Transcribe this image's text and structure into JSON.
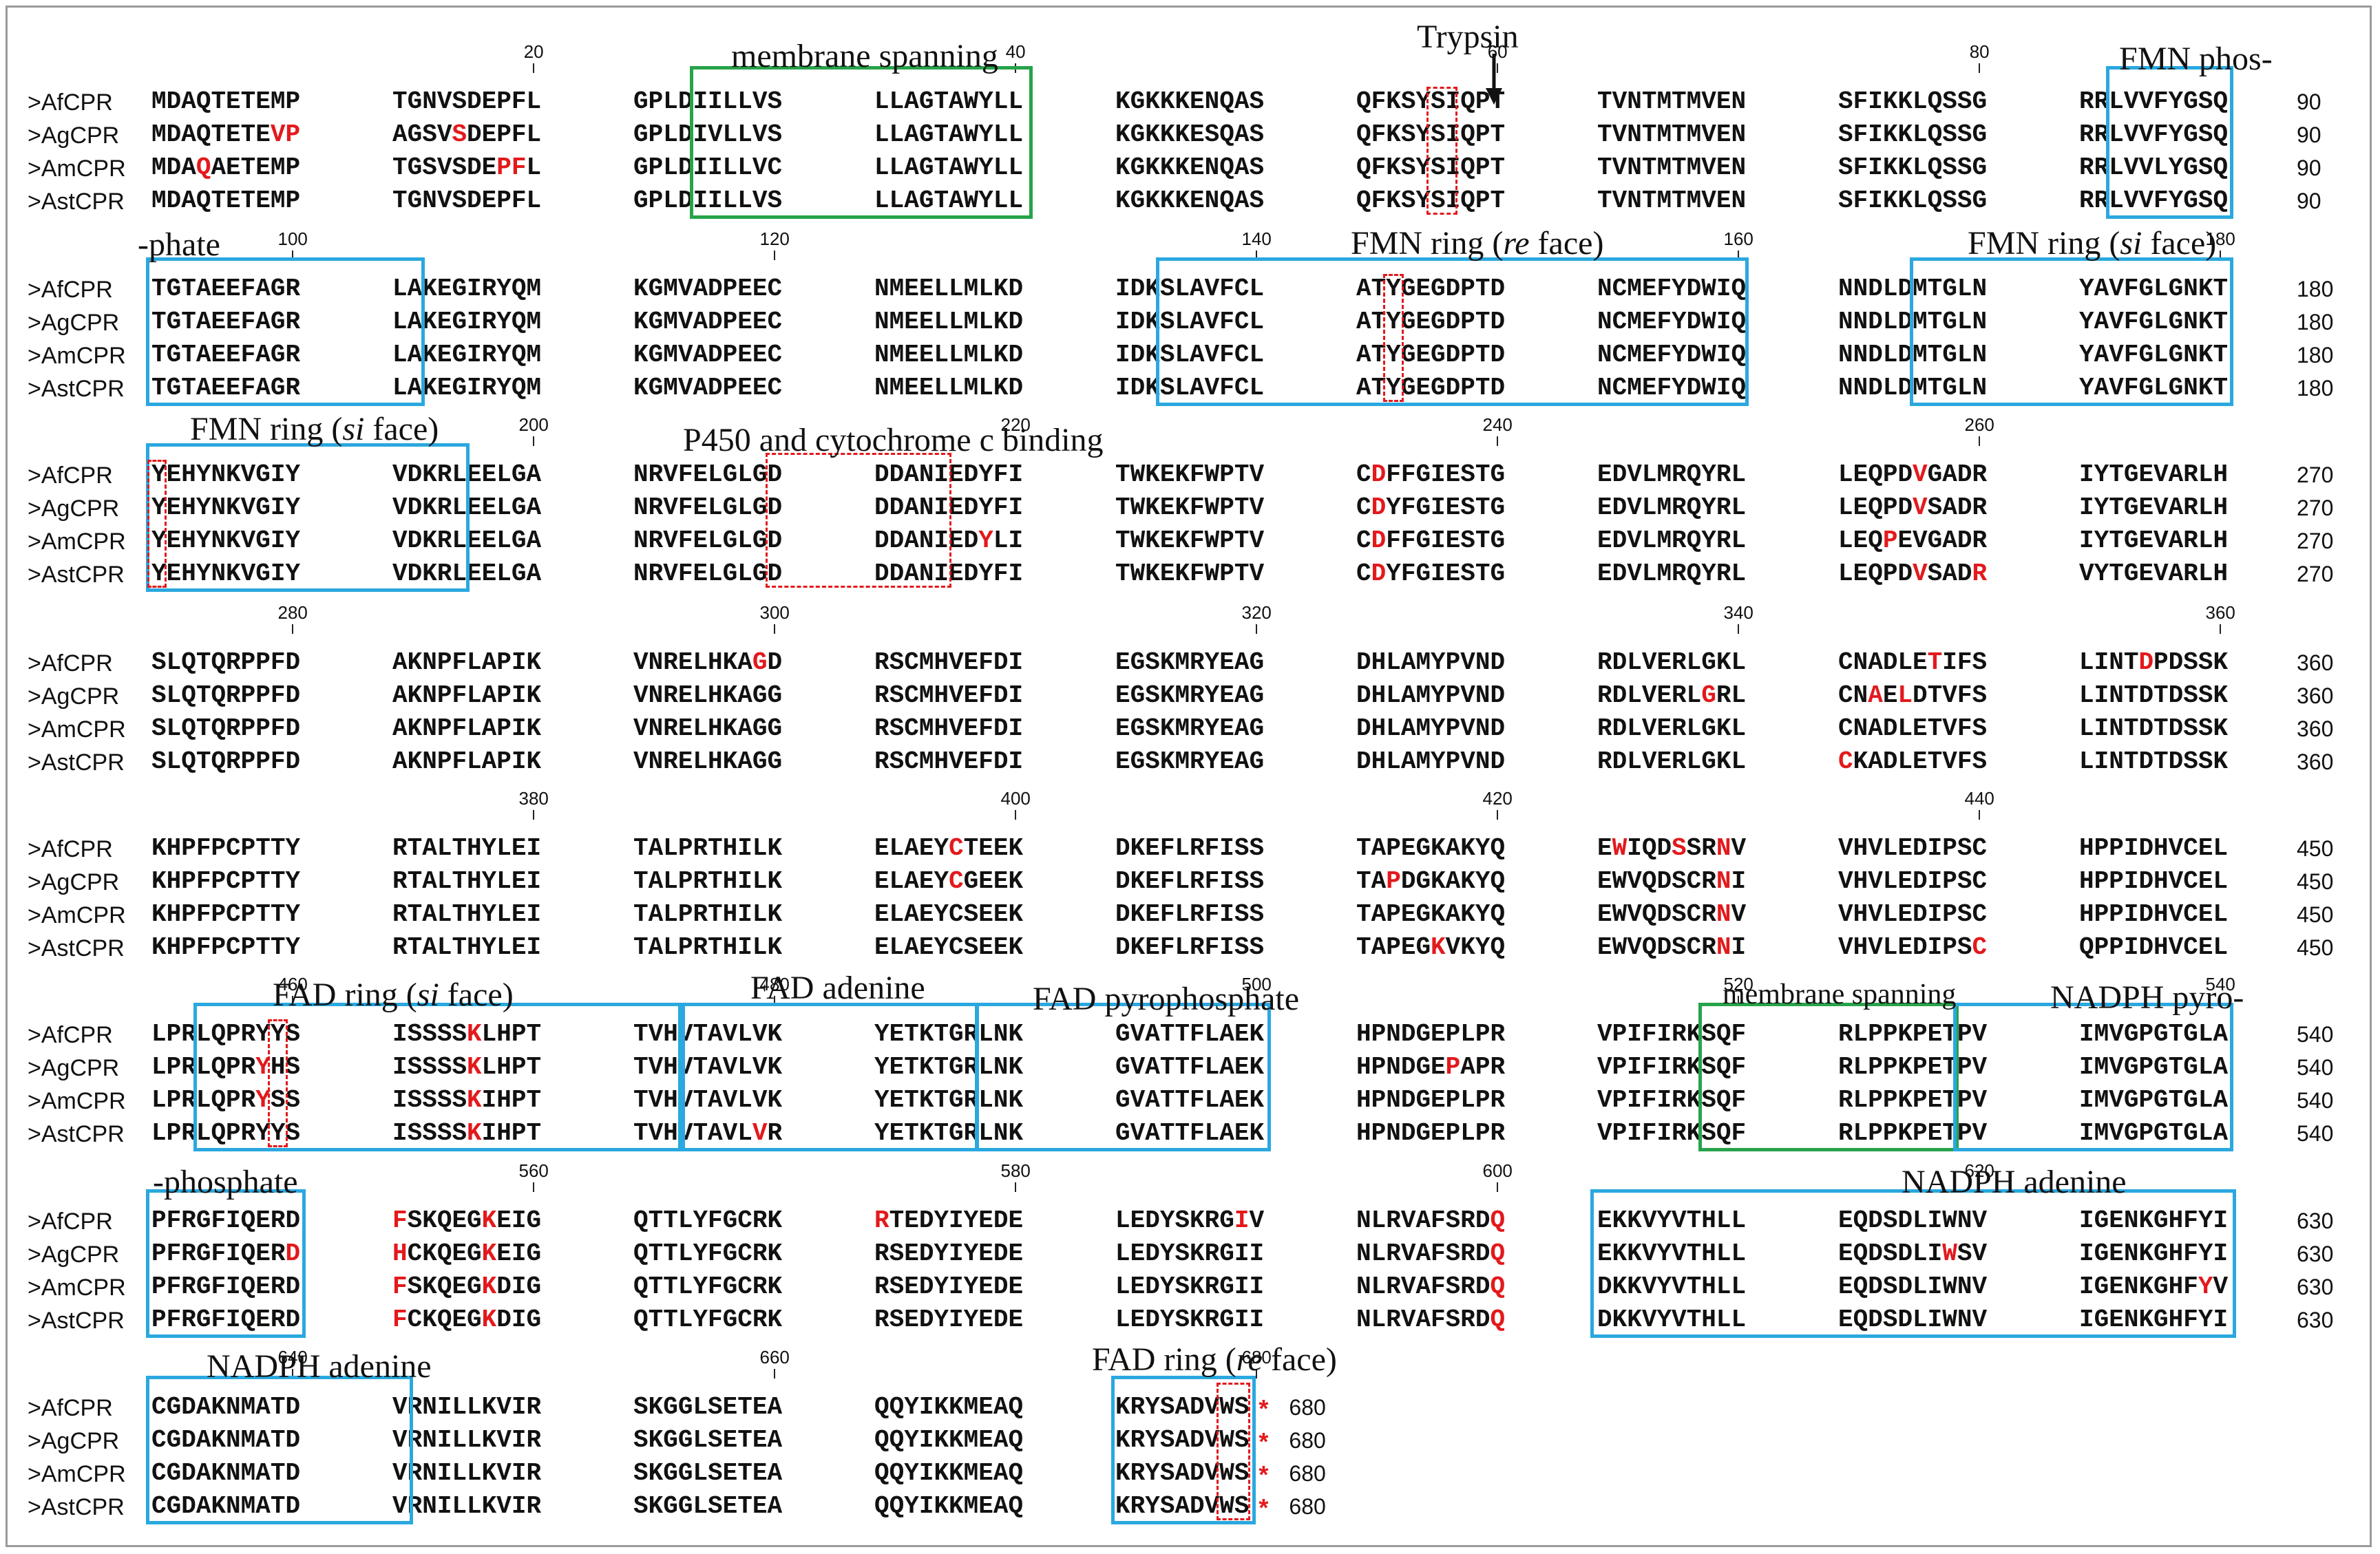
{
  "names": [
    ">AfCPR",
    ">AgCPR",
    ">AmCPR",
    ">AstCPR"
  ],
  "colors": {
    "red": "#e3191c",
    "blue_box": "#2aa8df",
    "green_box": "#27a34a",
    "text": "#111111"
  },
  "blocks": [
    {
      "ticks": [
        {
          "label": "20",
          "col": 20
        },
        {
          "label": "40",
          "col": 40
        },
        {
          "label": "60",
          "col": 60
        },
        {
          "label": "80",
          "col": 80
        }
      ],
      "end": "90",
      "rows": [
        [
          "MDAQTETEMP",
          "TGNVSDEPFL",
          "GPLDIILLVS",
          "LLAGTAWYLL",
          "KGKKKENQAS",
          "QFKSYSIQPT",
          "TVNTMTMVEN",
          "SFIKKLQSSG",
          "RRLVVFYGSQ"
        ],
        [
          "MDAQTETEVP",
          "AGSVSDEPFL",
          "GPLDIVLLVS",
          "LLAGTAWYLL",
          "KGKKKESQAS",
          "QFKSYSIQPT",
          "TVNTMTMVEN",
          "SFIKKLQSSG",
          "RRLVVFYGSQ"
        ],
        [
          "MDAQAETEMP",
          "TGSVSDEPFL",
          "GPLDIILLVC",
          "LLAGTAWYLL",
          "KGKKKENQAS",
          "QFKSYSIQPT",
          "TVNTMTMVEN",
          "SFIKKLQSSG",
          "RRLVVLYGSQ"
        ],
        [
          "MDAQTETEMP",
          "TGNVSDEPFL",
          "GPLDIILLVS",
          "LLAGTAWYLL",
          "KGKKKENQAS",
          "QFKSYSIQPT",
          "TVNTMTMVEN",
          "SFIKKLQSSG",
          "RRLVVFYGSQ"
        ]
      ],
      "red": [
        [],
        [
          9,
          10,
          15
        ],
        [
          4,
          18,
          19
        ],
        []
      ],
      "red_extra": [
        [
          12
        ],
        [],
        [
          25
        ],
        []
      ]
    },
    {
      "ticks": [
        {
          "label": "100",
          "col": 10
        },
        {
          "label": "120",
          "col": 30
        },
        {
          "label": "140",
          "col": 50
        },
        {
          "label": "160",
          "col": 70
        },
        {
          "label": "180",
          "col": 90
        }
      ],
      "end": "180",
      "rows": [
        [
          "TGTAEEFAGR",
          "LAKEGIRYQM",
          "KGMVADPEEC",
          "NMEELLMLKD",
          "IDKSLAVFCL",
          "ATYGEGDPTD",
          "NCMEFYDWIQ",
          "NNDLDMTGLN",
          "YAVFGLGNKT"
        ],
        [
          "TGTAEEFAGR",
          "LAKEGIRYQM",
          "KGMVADPEEC",
          "NMEELLMLKD",
          "IDKSLAVFCL",
          "ATYGEGDPTD",
          "NCMEFYDWIQ",
          "NNDLDMTGLN",
          "YAVFGLGNKT"
        ],
        [
          "TGTAEEFAGR",
          "LAKEGIRYQM",
          "KGMVADPEEC",
          "NMEELLMLKD",
          "IDKSLAVFCL",
          "ATYGEGDPTD",
          "NCMEFYDWIQ",
          "NNDLDMTGLN",
          "YAVFGLGNKT"
        ],
        [
          "TGTAEEFAGR",
          "LAKEGIRYQM",
          "KGMVADPEEC",
          "NMEELLMLKD",
          "IDKSLAVFCL",
          "ATYGEGDPTD",
          "NCMEFYDWIQ",
          "NNDLDMTGLN",
          "YAVFGLGNKT"
        ]
      ],
      "red": [
        [],
        [],
        [],
        []
      ]
    },
    {
      "ticks": [
        {
          "label": "200",
          "col": 20
        },
        {
          "label": "220",
          "col": 40
        },
        {
          "label": "240",
          "col": 60
        },
        {
          "label": "260",
          "col": 80
        }
      ],
      "end": "270",
      "rows": [
        [
          "YEHYNKVGIY",
          "VDKRLEELGA",
          "NRVFELGLGD",
          "DDANIEDYFI",
          "TWKEKFWPTV",
          "CDFFGIESTG",
          "EDVLMRQYRL",
          "LEQPDVGADR",
          "IYTGEVARLH"
        ],
        [
          "YEHYNKVGIY",
          "VDKRLEELGA",
          "NRVFELGLGD",
          "DDANIEDYFI",
          "TWKEKFWPTV",
          "CDYFGIESTG",
          "EDVLMRQYRL",
          "LEQPDVSADR",
          "IYTGEVARLH"
        ],
        [
          "YEHYNKVGIY",
          "VDKRLEELGA",
          "NRVFELGLGD",
          "DDANIEDYLI",
          "TWKEKFWPTV",
          "CDFFGIESTG",
          "EDVLMRQYRL",
          "LEQPEVGADR",
          "IYTGEVARLH"
        ],
        [
          "YEHYNKVGIY",
          "VDKRLEELGA",
          "NRVFELGLGD",
          "DDANIEDYFI",
          "TWKEKFWPTV",
          "CDYFGIESTG",
          "EDVLMRQYRL",
          "LEQPDVSADR",
          "VYTGEVARLH"
        ]
      ],
      "red": [
        [
          52,
          76
        ],
        [
          52,
          76
        ],
        [
          38,
          52,
          74
        ],
        [
          52,
          76,
          80
        ]
      ]
    },
    {
      "ticks": [
        {
          "label": "280",
          "col": 10
        },
        {
          "label": "300",
          "col": 30
        },
        {
          "label": "320",
          "col": 50
        },
        {
          "label": "340",
          "col": 70
        },
        {
          "label": "360",
          "col": 90
        }
      ],
      "end": "360",
      "rows": [
        [
          "SLQTQRPPFD",
          "AKNPFLAPIK",
          "VNRELHKAGD",
          "RSCMHVEFDI",
          "EGSKMRYEAG",
          "DHLAMYPVND",
          "RDLVERLGKL",
          "CNADLETIFS",
          "LINTDPDSSK"
        ],
        [
          "SLQTQRPPFD",
          "AKNPFLAPIK",
          "VNRELHKAGG",
          "RSCMHVEFDI",
          "EGSKMRYEAG",
          "DHLAMYPVND",
          "RDLVERLGRL",
          "CNAELDTVFS",
          "LINTDTDSSK"
        ],
        [
          "SLQTQRPPFD",
          "AKNPFLAPIK",
          "VNRELHKAGG",
          "RSCMHVEFDI",
          "EGSKMRYEAG",
          "DHLAMYPVND",
          "RDLVERLGKL",
          "CNADLETVFS",
          "LINTDTDSSK"
        ],
        [
          "SLQTQRPPFD",
          "AKNPFLAPIK",
          "VNRELHKAGG",
          "RSCMHVEFDI",
          "EGSKMRYEAG",
          "DHLAMYPVND",
          "RDLVERLGKL",
          "CKADLETVFS",
          "LINTDTDSSK"
        ]
      ],
      "red": [
        [
          29,
          77,
          85
        ],
        [
          68,
          73,
          75
        ],
        [],
        [
          71
        ]
      ]
    },
    {
      "ticks": [
        {
          "label": "380",
          "col": 20
        },
        {
          "label": "400",
          "col": 40
        },
        {
          "label": "420",
          "col": 60
        },
        {
          "label": "440",
          "col": 80
        }
      ],
      "end": "450",
      "rows": [
        [
          "KHPFPCPTTY",
          "RTALTHYLEI",
          "TALPRTHILK",
          "ELAEYCTEEK",
          "DKEFLRFISS",
          "TAPEGKAKYQ",
          "EWIQDSSRNV",
          "VHVLEDIPSC",
          "HPPIDHVCEL"
        ],
        [
          "KHPFPCPTTY",
          "RTALTHYLEI",
          "TALPRTHILK",
          "ELAEYCGEEK",
          "DKEFLRFISS",
          "TAPDGKAKYQ",
          "EWVQDSCRNI",
          "VHVLEDIPSC",
          "HPPIDHVCEL"
        ],
        [
          "KHPFPCPTTY",
          "RTALTHYLEI",
          "TALPRTHILK",
          "ELAEYCSEEK",
          "DKEFLRFISS",
          "TAPEGKAKYQ",
          "EWVQDSCRNV",
          "VHVLEDIPSC",
          "HPPIDHVCEL"
        ],
        [
          "KHPFPCPTTY",
          "RTALTHYLEI",
          "TALPRTHILK",
          "ELAEYCSEEK",
          "DKEFLRFISS",
          "TAPEGKVKYQ",
          "EWVQDSCRNI",
          "VHVLEDIPSC",
          "QPPIDHVCEL"
        ]
      ],
      "red": [
        [
          36,
          62,
          66,
          69
        ],
        [
          36,
          53,
          69
        ],
        [
          69
        ],
        [
          56,
          69,
          80
        ]
      ]
    },
    {
      "ticks": [
        {
          "label": "460",
          "col": 10
        },
        {
          "label": "480",
          "col": 30
        },
        {
          "label": "500",
          "col": 50
        },
        {
          "label": "520",
          "col": 70
        },
        {
          "label": "540",
          "col": 90
        }
      ],
      "end": "540",
      "rows": [
        [
          "LPRLQPRYYS",
          "ISSSSKLHPT",
          "TVHVTAVLVK",
          "YETKTGRLNK",
          "GVATTFLAEK",
          "HPNDGEPLPR",
          "VPIFIRKSQF",
          "RLPPKPETPV",
          "IMVGPGTGLA"
        ],
        [
          "LPRLQPRYHS",
          "ISSSSKLHPT",
          "TVHVTAVLVK",
          "YETKTGRLNK",
          "GVATTFLAEK",
          "HPNDGEPAPR",
          "VPIFIRKSQF",
          "RLPPKPETPV",
          "IMVGPGTGLA"
        ],
        [
          "LPRLQPRYSS",
          "ISSSSKIHPT",
          "TVHVTAVLVK",
          "YETKTGRLNK",
          "GVATTFLAEK",
          "HPNDGEPLPR",
          "VPIFIRKSQF",
          "RLPPKPETPV",
          "IMVGPGTGLA"
        ],
        [
          "LPRLQPRYYS",
          "ISSSSKIHPT",
          "TVHVTAVLVR",
          "YETKTGRLNK",
          "GVATTFLAEK",
          "HPNDGEPLPR",
          "VPIFIRKSQF",
          "RLPPKPETPV",
          "IMVGPGTGLA"
        ]
      ],
      "red": [
        [
          16
        ],
        [
          8,
          16,
          57
        ],
        [
          8,
          16
        ],
        [
          16,
          29
        ]
      ]
    },
    {
      "ticks": [
        {
          "label": "560",
          "col": 20
        },
        {
          "label": "580",
          "col": 40
        },
        {
          "label": "600",
          "col": 60
        },
        {
          "label": "620",
          "col": 80
        }
      ],
      "end": "630",
      "rows": [
        [
          "PFRGFIQERD",
          "FSKQEGKEIG",
          "QTTLYFGCRK",
          "RTEDYIYEDE",
          "LEDYSKRGIV",
          "NLRVAFSRDQ",
          "EKKVYVTHLL",
          "EQDSDLIWNV",
          "IGENKGHFYI"
        ],
        [
          "PFRGFIQERD",
          "HCKQEGKEIG",
          "QTTLYFGCRK",
          "RSEDYIYEDE",
          "LEDYSKRGII",
          "NLRVAFSRDQ",
          "EKKVYVTHLL",
          "EQDSDLIWSV",
          "IGENKGHFYI"
        ],
        [
          "PFRGFIQERD",
          "FSKQEGKDIG",
          "QTTLYFGCRK",
          "RSEDYIYEDE",
          "LEDYSKRGII",
          "NLRVAFSRDQ",
          "DKKVYVTHLL",
          "EQDSDLIWNV",
          "IGENKGHFYV"
        ],
        [
          "PFRGFIQERD",
          "FCKQEGKDIG",
          "QTTLYFGCRK",
          "RSEDYIYEDE",
          "LEDYSKRGII",
          "NLRVAFSRDQ",
          "DKKVYVTHLL",
          "EQDSDLIWNV",
          "IGENKGHFYI"
        ]
      ],
      "red": [
        [
          11,
          17,
          31,
          49,
          60
        ],
        [
          10,
          11,
          17,
          60,
          78
        ],
        [
          11,
          17,
          60,
          89
        ],
        [
          11,
          17,
          60
        ]
      ]
    },
    {
      "ticks": [
        {
          "label": "640",
          "col": 10
        },
        {
          "label": "660",
          "col": 30
        },
        {
          "label": "680",
          "col": 50
        }
      ],
      "end": "680",
      "rows": [
        [
          "CGDAKNMATD",
          "VRNILLKVIR",
          "SKGGLSETEA",
          "QQYIKKMEAQ",
          "KRYSADVWS"
        ],
        [
          "CGDAKNMATD",
          "VRNILLKVIR",
          "SKGGLSETEA",
          "QQYIKKMEAQ",
          "KRYSADVWS"
        ],
        [
          "CGDAKNMATD",
          "VRNILLKVIR",
          "SKGGLSETEA",
          "QQYIKKMEAQ",
          "KRYSADVWS"
        ],
        [
          "CGDAKNMATD",
          "VRNILLKVIR",
          "SKGGLSETEA",
          "QQYIKKMEAQ",
          "KRYSADVWS"
        ]
      ],
      "red": [
        [],
        [],
        [],
        []
      ],
      "star": "*"
    }
  ],
  "annotations": {
    "membrane_spanning_1": "membrane spanning",
    "trypsin": "Trypsin",
    "fmn_phos": "FMN phos-",
    "phate": "-phate",
    "fmn_ring_re_a": "FMN ring (",
    "fmn_ring_re_b": "re",
    "fmn_ring_re_c": " face)",
    "fmn_ring_si_a": "FMN ring (",
    "fmn_ring_si_b": "si",
    "fmn_ring_si_c": " face)",
    "fmn_ring_si2_a": "FMN ring (",
    "fmn_ring_si2_b": "si",
    "fmn_ring_si2_c": " face)",
    "p450": "P450 and cytochrome c binding",
    "fad_ring_si_a": "FAD",
    "fad_ring_si_b": " ring (",
    "fad_ring_si_c": "si",
    "fad_ring_si_d": " face)",
    "fad_adenine_a": "FAD",
    "fad_adenine_b": " adenine",
    "fad_pyro": "FAD pyrophosphate",
    "membrane_spanning_2": "membrane spanning",
    "nadph_pyro": "NADPH pyro-",
    "phosphate": "-phosphate",
    "nadph_adenine_1a": "NADPH",
    "nadph_adenine_1b": " adenine",
    "nadph_adenine_2a": "NADPH",
    "nadph_adenine_2b": " adenine",
    "fad_ring_re_a": "FAD ring (",
    "fad_ring_re_b": "re",
    "fad_ring_re_c": " face)"
  }
}
